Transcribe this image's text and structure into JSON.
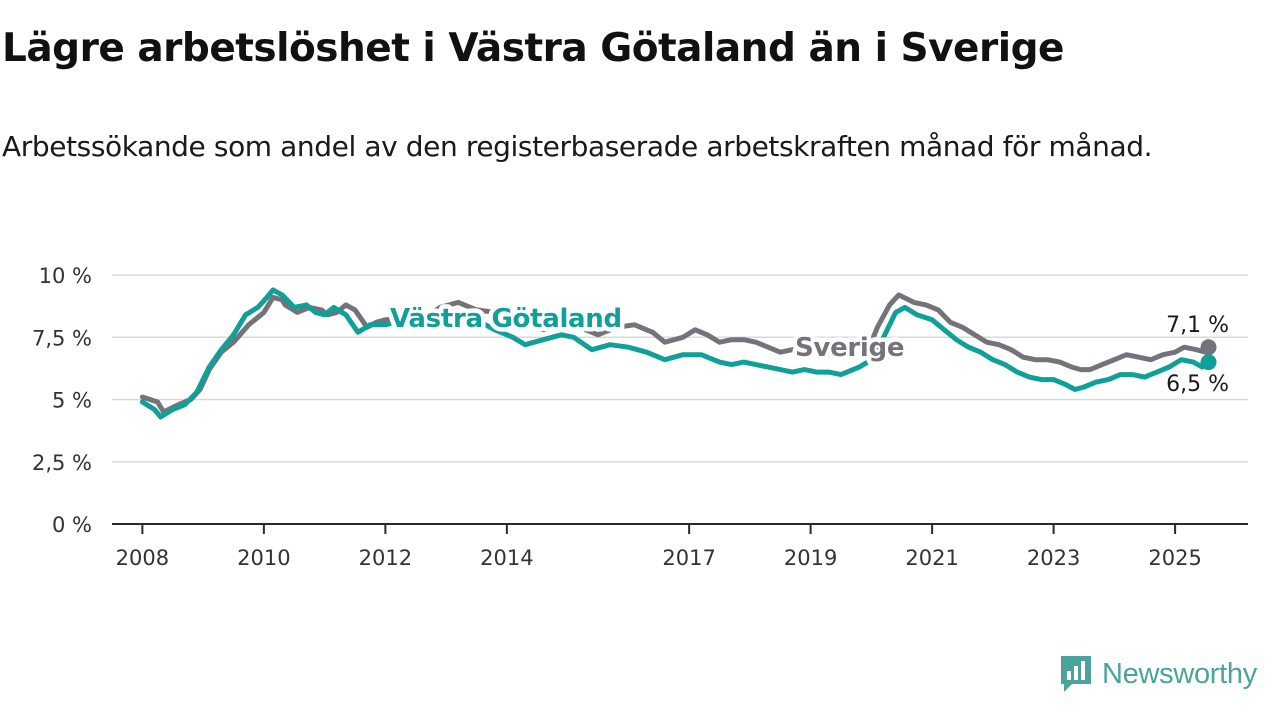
{
  "title": "Lägre arbetslöshet i Västra Götaland än i Sverige",
  "subtitle": "Arbetssökande som andel av den registerbaserade arbetskraften månad för månad.",
  "brand": {
    "name": "Newsworthy",
    "icon": "newsworthy-logo-icon",
    "color": "#4ba39b"
  },
  "chart_data": {
    "type": "line",
    "title": "Lägre arbetslöshet i Västra Götaland än i Sverige",
    "xlabel": "",
    "ylabel": "",
    "xlim": [
      2007.5,
      2026.2
    ],
    "ylim": [
      0,
      10
    ],
    "grid": true,
    "x_ticks": [
      2008,
      2010,
      2012,
      2014,
      2017,
      2019,
      2021,
      2023,
      2025
    ],
    "x_tick_labels": [
      "2008",
      "2010",
      "2012",
      "2014",
      "2017",
      "2019",
      "2021",
      "2023",
      "2025"
    ],
    "y_ticks": [
      0,
      2.5,
      5,
      7.5,
      10
    ],
    "y_tick_labels": [
      "0 %",
      "2,5 %",
      "5 %",
      "7,5 %",
      "10 %"
    ],
    "series": [
      {
        "name": "Sverige",
        "color": "#76727b",
        "end_label": "7,1 %",
        "points": [
          [
            2008.0,
            5.1
          ],
          [
            2008.25,
            4.9
          ],
          [
            2008.35,
            4.5
          ],
          [
            2008.6,
            4.8
          ],
          [
            2008.8,
            5.0
          ],
          [
            2008.95,
            5.4
          ],
          [
            2009.1,
            6.2
          ],
          [
            2009.3,
            6.9
          ],
          [
            2009.5,
            7.3
          ],
          [
            2009.75,
            8.0
          ],
          [
            2010.0,
            8.5
          ],
          [
            2010.15,
            9.1
          ],
          [
            2010.3,
            9.0
          ],
          [
            2010.35,
            8.8
          ],
          [
            2010.55,
            8.5
          ],
          [
            2010.75,
            8.7
          ],
          [
            2010.95,
            8.6
          ],
          [
            2011.05,
            8.4
          ],
          [
            2011.2,
            8.5
          ],
          [
            2011.35,
            8.8
          ],
          [
            2011.5,
            8.6
          ],
          [
            2011.7,
            7.9
          ],
          [
            2011.85,
            8.1
          ],
          [
            2012.0,
            8.2
          ],
          [
            2012.3,
            8.3
          ],
          [
            2012.6,
            8.2
          ],
          [
            2012.9,
            8.7
          ],
          [
            2013.2,
            8.9
          ],
          [
            2013.5,
            8.6
          ],
          [
            2013.8,
            8.5
          ],
          [
            2014.0,
            8.2
          ],
          [
            2014.3,
            8.0
          ],
          [
            2014.6,
            7.8
          ],
          [
            2014.9,
            8.1
          ],
          [
            2015.2,
            7.9
          ],
          [
            2015.5,
            7.6
          ],
          [
            2015.8,
            7.9
          ],
          [
            2016.1,
            8.0
          ],
          [
            2016.4,
            7.7
          ],
          [
            2016.6,
            7.3
          ],
          [
            2016.9,
            7.5
          ],
          [
            2017.1,
            7.8
          ],
          [
            2017.3,
            7.6
          ],
          [
            2017.5,
            7.3
          ],
          [
            2017.7,
            7.4
          ],
          [
            2017.9,
            7.4
          ],
          [
            2018.1,
            7.3
          ],
          [
            2018.3,
            7.1
          ],
          [
            2018.5,
            6.9
          ],
          [
            2018.7,
            7.0
          ],
          [
            2018.9,
            7.0
          ],
          [
            2019.1,
            6.9
          ],
          [
            2019.3,
            6.8
          ],
          [
            2019.5,
            7.0
          ],
          [
            2019.8,
            7.1
          ],
          [
            2020.0,
            7.3
          ],
          [
            2020.1,
            7.9
          ],
          [
            2020.3,
            8.8
          ],
          [
            2020.45,
            9.2
          ],
          [
            2020.7,
            8.9
          ],
          [
            2020.9,
            8.8
          ],
          [
            2021.1,
            8.6
          ],
          [
            2021.3,
            8.1
          ],
          [
            2021.5,
            7.9
          ],
          [
            2021.7,
            7.6
          ],
          [
            2021.9,
            7.3
          ],
          [
            2022.1,
            7.2
          ],
          [
            2022.3,
            7.0
          ],
          [
            2022.5,
            6.7
          ],
          [
            2022.7,
            6.6
          ],
          [
            2022.9,
            6.6
          ],
          [
            2023.1,
            6.5
          ],
          [
            2023.3,
            6.3
          ],
          [
            2023.45,
            6.2
          ],
          [
            2023.6,
            6.2
          ],
          [
            2023.8,
            6.4
          ],
          [
            2024.0,
            6.6
          ],
          [
            2024.2,
            6.8
          ],
          [
            2024.4,
            6.7
          ],
          [
            2024.6,
            6.6
          ],
          [
            2024.8,
            6.8
          ],
          [
            2025.0,
            6.9
          ],
          [
            2025.15,
            7.1
          ],
          [
            2025.35,
            7.0
          ],
          [
            2025.5,
            6.9
          ],
          [
            2025.55,
            7.1
          ]
        ]
      },
      {
        "name": "Västra Götaland",
        "color": "#0fa097",
        "end_label": "6,5 %",
        "points": [
          [
            2008.0,
            4.9
          ],
          [
            2008.2,
            4.6
          ],
          [
            2008.3,
            4.3
          ],
          [
            2008.5,
            4.6
          ],
          [
            2008.7,
            4.8
          ],
          [
            2008.9,
            5.3
          ],
          [
            2009.1,
            6.3
          ],
          [
            2009.3,
            7.0
          ],
          [
            2009.5,
            7.6
          ],
          [
            2009.7,
            8.4
          ],
          [
            2009.9,
            8.7
          ],
          [
            2010.05,
            9.1
          ],
          [
            2010.15,
            9.4
          ],
          [
            2010.3,
            9.2
          ],
          [
            2010.5,
            8.7
          ],
          [
            2010.7,
            8.8
          ],
          [
            2010.85,
            8.5
          ],
          [
            2011.0,
            8.4
          ],
          [
            2011.15,
            8.7
          ],
          [
            2011.35,
            8.4
          ],
          [
            2011.55,
            7.7
          ],
          [
            2011.75,
            8.0
          ],
          [
            2012.0,
            8.0
          ],
          [
            2012.3,
            8.2
          ],
          [
            2012.6,
            8.0
          ],
          [
            2012.9,
            8.4
          ],
          [
            2013.2,
            8.5
          ],
          [
            2013.5,
            8.2
          ],
          [
            2013.8,
            7.8
          ],
          [
            2014.1,
            7.5
          ],
          [
            2014.3,
            7.2
          ],
          [
            2014.6,
            7.4
          ],
          [
            2014.9,
            7.6
          ],
          [
            2015.1,
            7.5
          ],
          [
            2015.4,
            7.0
          ],
          [
            2015.7,
            7.2
          ],
          [
            2016.0,
            7.1
          ],
          [
            2016.3,
            6.9
          ],
          [
            2016.6,
            6.6
          ],
          [
            2016.9,
            6.8
          ],
          [
            2017.2,
            6.8
          ],
          [
            2017.5,
            6.5
          ],
          [
            2017.7,
            6.4
          ],
          [
            2017.9,
            6.5
          ],
          [
            2018.1,
            6.4
          ],
          [
            2018.3,
            6.3
          ],
          [
            2018.5,
            6.2
          ],
          [
            2018.7,
            6.1
          ],
          [
            2018.9,
            6.2
          ],
          [
            2019.1,
            6.1
          ],
          [
            2019.3,
            6.1
          ],
          [
            2019.5,
            6.0
          ],
          [
            2019.8,
            6.3
          ],
          [
            2020.0,
            6.6
          ],
          [
            2020.2,
            7.5
          ],
          [
            2020.4,
            8.5
          ],
          [
            2020.55,
            8.7
          ],
          [
            2020.75,
            8.4
          ],
          [
            2021.0,
            8.2
          ],
          [
            2021.2,
            7.8
          ],
          [
            2021.4,
            7.4
          ],
          [
            2021.6,
            7.1
          ],
          [
            2021.8,
            6.9
          ],
          [
            2022.0,
            6.6
          ],
          [
            2022.2,
            6.4
          ],
          [
            2022.4,
            6.1
          ],
          [
            2022.6,
            5.9
          ],
          [
            2022.8,
            5.8
          ],
          [
            2023.0,
            5.8
          ],
          [
            2023.2,
            5.6
          ],
          [
            2023.35,
            5.4
          ],
          [
            2023.5,
            5.5
          ],
          [
            2023.7,
            5.7
          ],
          [
            2023.9,
            5.8
          ],
          [
            2024.1,
            6.0
          ],
          [
            2024.3,
            6.0
          ],
          [
            2024.5,
            5.9
          ],
          [
            2024.7,
            6.1
          ],
          [
            2024.9,
            6.3
          ],
          [
            2025.1,
            6.6
          ],
          [
            2025.3,
            6.5
          ],
          [
            2025.45,
            6.3
          ],
          [
            2025.55,
            6.5
          ]
        ]
      }
    ]
  }
}
